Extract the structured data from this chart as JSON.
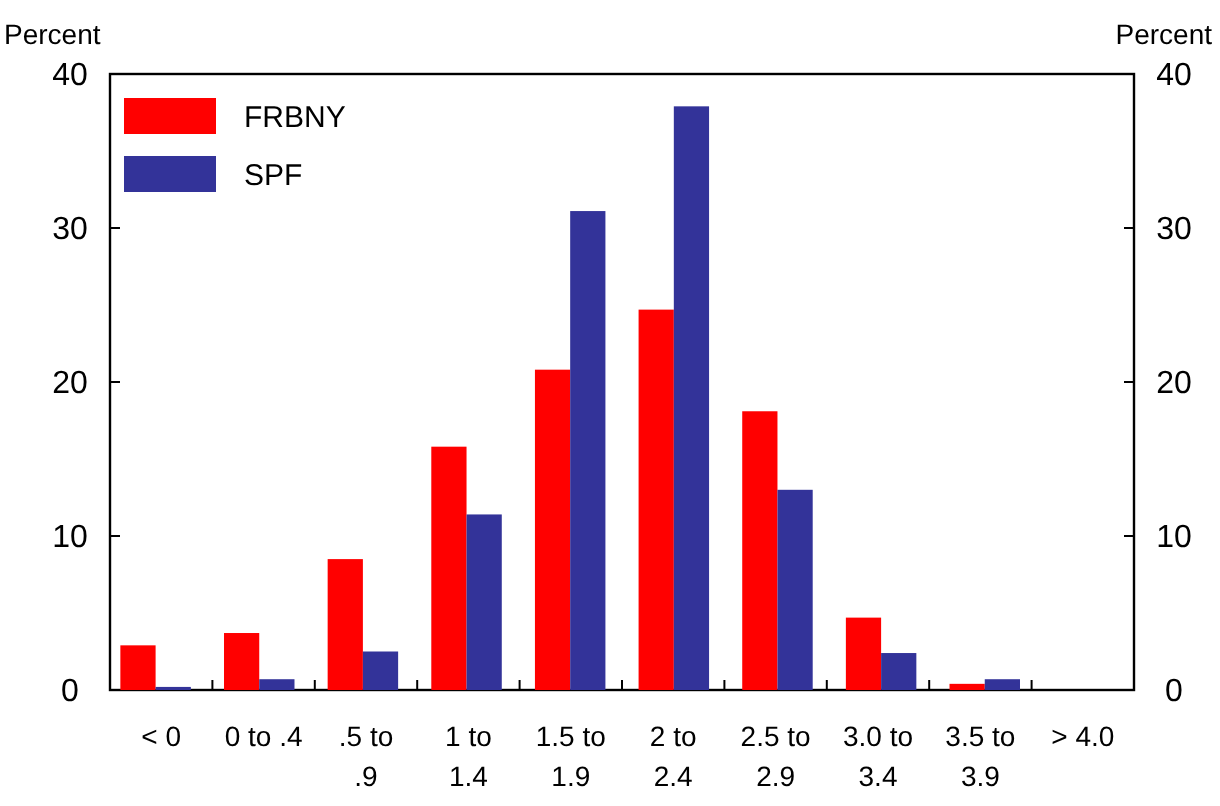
{
  "chart_data": {
    "type": "bar",
    "ylabel": "Percent",
    "y2label": "Percent",
    "categories": [
      "< 0",
      "0 to .4",
      ".5 to\n.9",
      "1 to\n1.4",
      "1.5 to\n1.9",
      "2 to\n2.4",
      "2.5 to\n2.9",
      "3.0 to\n3.4",
      "3.5 to\n3.9",
      "> 4.0"
    ],
    "series": [
      {
        "name": "FRBNY",
        "color": "#ff0000",
        "values": [
          2.9,
          3.7,
          8.5,
          15.8,
          20.8,
          24.7,
          18.1,
          4.7,
          0.4,
          0
        ]
      },
      {
        "name": "SPF",
        "color": "#333399",
        "values": [
          0.2,
          0.7,
          2.5,
          11.4,
          31.1,
          37.9,
          13.0,
          2.4,
          0.7,
          0
        ]
      }
    ],
    "ylim": [
      0,
      40
    ],
    "yticks": [
      0,
      10,
      20,
      30,
      40
    ],
    "y2lim": [
      0,
      40
    ],
    "y2ticks": [
      0,
      10,
      20,
      30,
      40
    ],
    "legend": "top left",
    "grid": false
  }
}
